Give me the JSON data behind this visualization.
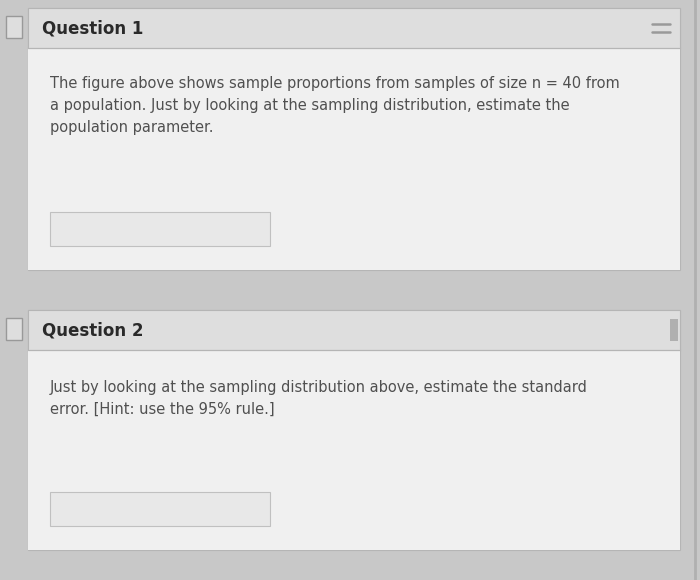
{
  "fig_width": 7.0,
  "fig_height": 5.8,
  "dpi": 100,
  "bg_color": "#c8c8c8",
  "card_bg": "#efefef",
  "card_border": "#b5b5b5",
  "header_bg": "#dedede",
  "body_bg": "#f0f0f0",
  "input_box_bg": "#e8e8e8",
  "input_box_border": "#c0c0c0",
  "text_color": "#505050",
  "header_text_color": "#2a2a2a",
  "q1_header": "Question 1",
  "q1_body_line1": "The figure above shows sample proportions from samples of size n = 40 from",
  "q1_body_line2": "a population. Just by looking at the sampling distribution, estimate the",
  "q1_body_line3": "population parameter.",
  "q2_header": "Question 2",
  "q2_body_line1": "Just by looking at the sampling distribution above, estimate the standard",
  "q2_body_line2": "error. [Hint: use the 95% rule.]",
  "hamburger_color": "#999999",
  "checkbox_border": "#999999",
  "scrollbar_color": "#b0b0b0"
}
